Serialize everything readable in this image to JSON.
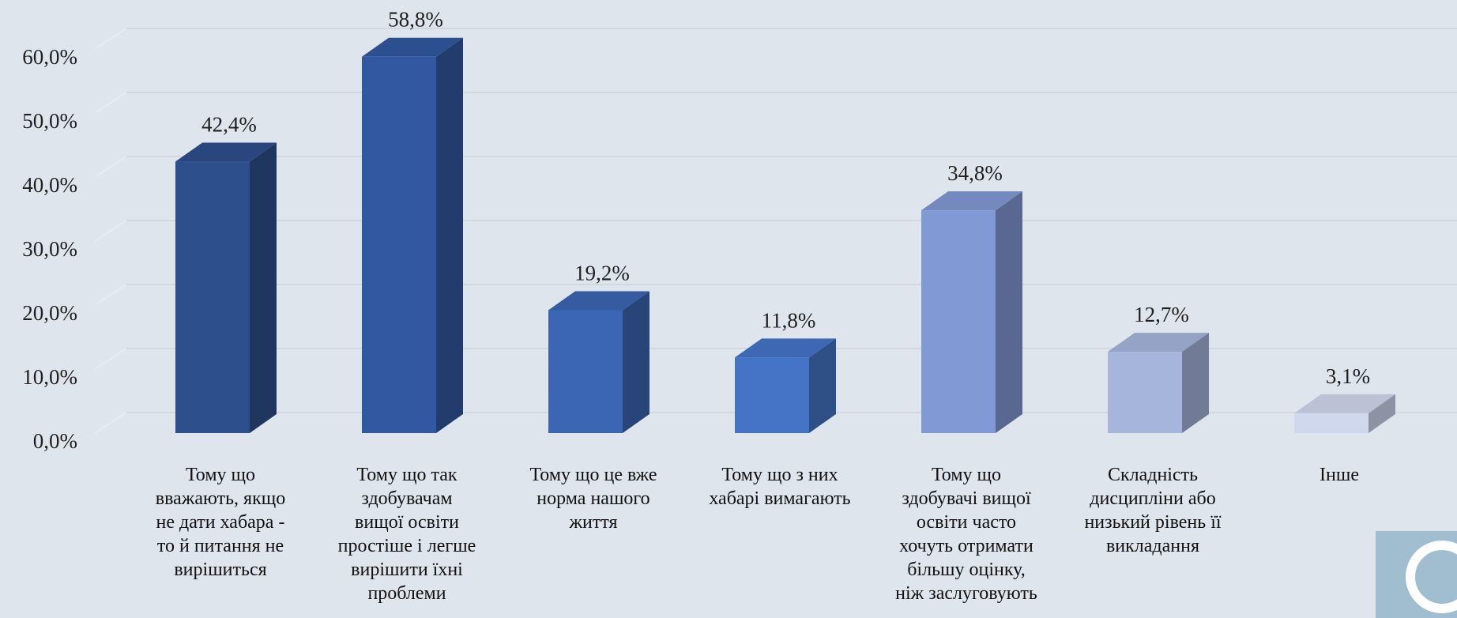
{
  "chart_data": {
    "type": "bar",
    "style": "3d-column",
    "title": "",
    "xlabel": "",
    "ylabel": "",
    "ylim": [
      0,
      60
    ],
    "yticks": [
      "0,0%",
      "10,0%",
      "20,0%",
      "30,0%",
      "40,0%",
      "50,0%",
      "60,0%"
    ],
    "grid": true,
    "legend": "none",
    "categories": [
      "Тому що\nвважають, якщо\nне дати хабара -\nто й питання  не\nвирішиться",
      "Тому що так\nздобувачам\nвищої освіти\nпростіше і легше\nвирішити  їхні\nпроблеми",
      "Тому що це вже\nнорма нашого\nжиття",
      "Тому що з них\nхабарі вимагають",
      "Тому що\nздобувачі вищої\nосвіти часто\nхочуть отримати\nбільшу оцінку,\nніж заслуговують",
      "Складність\nдисципліни  або\nнизький  рівень її\nвикладання",
      "Інше"
    ],
    "values": [
      42.4,
      58.8,
      19.2,
      11.8,
      34.8,
      12.7,
      3.1
    ],
    "value_labels": [
      "42,4%",
      "58,8%",
      "19,2%",
      "11,8%",
      "34,8%",
      "12,7%",
      "3,1%"
    ],
    "colors": [
      "#2d4f8c",
      "#3158a0",
      "#3b66b3",
      "#4574c7",
      "#8199d4",
      "#a6b5dc",
      "#d0d8ee"
    ]
  }
}
